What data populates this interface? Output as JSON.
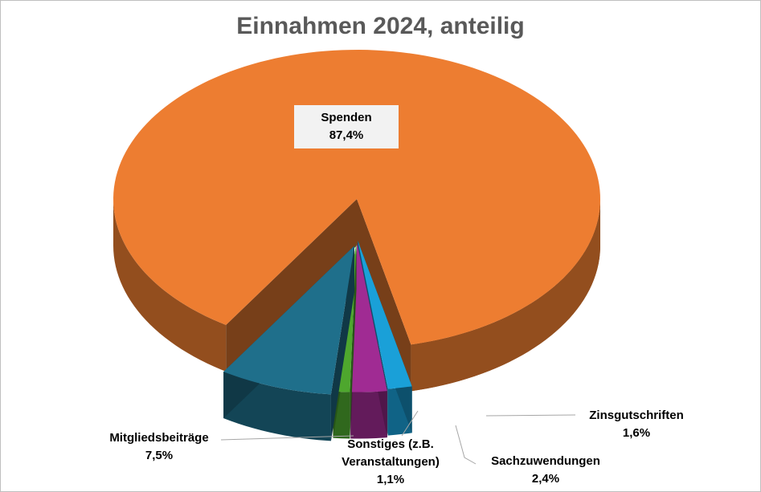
{
  "chart_data": {
    "type": "pie",
    "title": "Einnahmen 2024, anteilig",
    "slices": [
      {
        "label": "Spenden",
        "value_label": "87,4%",
        "value": 87.4,
        "color": "#ED7D31"
      },
      {
        "label": "Mitgliedsbeiträge",
        "value_label": "7,5%",
        "value": 7.5,
        "color": "#1F6F8B"
      },
      {
        "label": "Sonstiges (z.B. Veranstaltungen)",
        "value_label": "1,1%",
        "value": 1.1,
        "color": "#4EA72E"
      },
      {
        "label": "Sachzuwendungen",
        "value_label": "2,4%",
        "value": 2.4,
        "color": "#A02B93"
      },
      {
        "label": "Zinsgutschriften",
        "value_label": "1,6%",
        "value": 1.6,
        "color": "#1AA0D8"
      }
    ],
    "legend": "none",
    "style": "3d-exploded"
  },
  "labels": {
    "spenden_name": "Spenden",
    "spenden_pct": "87,4%",
    "mitglied_name": "Mitgliedsbeiträge",
    "mitglied_pct": "7,5%",
    "sonstiges_name_1": "Sonstiges (z.B.",
    "sonstiges_name_2": "Veranstaltungen)",
    "sonstiges_pct": "1,1%",
    "sach_name": "Sachzuwendungen",
    "sach_pct": "2,4%",
    "zins_name": "Zinsgutschriften",
    "zins_pct": "1,6%"
  }
}
